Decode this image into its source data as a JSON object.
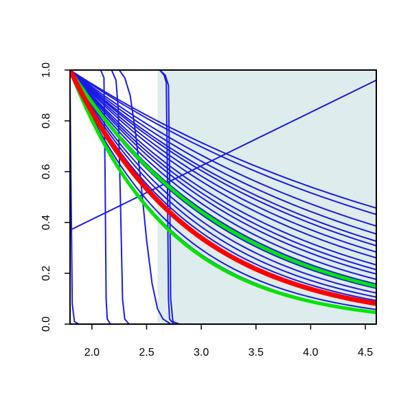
{
  "chart_data": {
    "type": "line",
    "title": "",
    "xlabel": "",
    "ylabel": "",
    "xlim": [
      1.8,
      4.6
    ],
    "ylim": [
      0.0,
      1.0
    ],
    "grid": false,
    "x_ticks": [
      2.0,
      2.5,
      3.0,
      3.5,
      4.0,
      4.5
    ],
    "x_tick_labels": [
      "2.0",
      "2.5",
      "3.0",
      "3.5",
      "4.0",
      "4.5"
    ],
    "y_ticks": [
      0.0,
      0.2,
      0.4,
      0.6,
      0.8,
      1.0
    ],
    "y_tick_labels": [
      "0.0",
      "0.2",
      "0.4",
      "0.6",
      "0.8",
      "1.0"
    ],
    "shaded_region": {
      "x_from": 2.6,
      "x_to": 4.6,
      "color": "#dfeced"
    },
    "colors": {
      "blue": "#1a1ae6",
      "red": "#ff0000",
      "green": "#00e600"
    },
    "series": [
      {
        "color": "blue",
        "width": 2,
        "points": [
          [
            1.8,
            0.37
          ],
          [
            4.6,
            0.96
          ]
        ]
      },
      {
        "color": "blue",
        "width": 2,
        "kind": "step",
        "points": [
          [
            1.8,
            1.0
          ],
          [
            1.8,
            0.93
          ],
          [
            1.81,
            0.5
          ],
          [
            1.82,
            0.08
          ],
          [
            1.84,
            0.01
          ],
          [
            1.88,
            0.0
          ],
          [
            4.6,
            0.0
          ]
        ]
      },
      {
        "color": "blue",
        "width": 2,
        "kind": "step",
        "points": [
          [
            1.8,
            1.0
          ],
          [
            2.08,
            1.0
          ],
          [
            2.11,
            0.97
          ],
          [
            2.12,
            0.6
          ],
          [
            2.13,
            0.1
          ],
          [
            2.14,
            0.02
          ],
          [
            2.17,
            0.0
          ],
          [
            4.6,
            0.0
          ]
        ]
      },
      {
        "color": "blue",
        "width": 2,
        "kind": "step",
        "points": [
          [
            1.8,
            1.0
          ],
          [
            2.18,
            1.0
          ],
          [
            2.22,
            0.96
          ],
          [
            2.24,
            0.85
          ],
          [
            2.26,
            0.5
          ],
          [
            2.28,
            0.1
          ],
          [
            2.3,
            0.02
          ],
          [
            2.34,
            0.0
          ],
          [
            4.6,
            0.0
          ]
        ]
      },
      {
        "color": "blue",
        "width": 2,
        "kind": "step",
        "points": [
          [
            1.8,
            1.0
          ],
          [
            2.25,
            1.0
          ],
          [
            2.3,
            0.97
          ],
          [
            2.35,
            0.9
          ],
          [
            2.4,
            0.75
          ],
          [
            2.45,
            0.55
          ],
          [
            2.5,
            0.33
          ],
          [
            2.55,
            0.16
          ],
          [
            2.6,
            0.06
          ],
          [
            2.65,
            0.02
          ],
          [
            2.72,
            0.0
          ],
          [
            4.6,
            0.0
          ]
        ]
      },
      {
        "color": "blue",
        "width": 2,
        "kind": "step",
        "points": [
          [
            1.8,
            1.0
          ],
          [
            2.62,
            1.0
          ],
          [
            2.66,
            0.98
          ],
          [
            2.68,
            0.95
          ],
          [
            2.69,
            0.6
          ],
          [
            2.7,
            0.1
          ],
          [
            2.71,
            0.02
          ],
          [
            2.75,
            0.0
          ],
          [
            4.6,
            0.0
          ]
        ]
      },
      {
        "color": "blue",
        "width": 2,
        "kind": "step",
        "points": [
          [
            1.8,
            1.0
          ],
          [
            2.62,
            1.0
          ],
          [
            2.67,
            0.98
          ],
          [
            2.7,
            0.94
          ],
          [
            2.71,
            0.6
          ],
          [
            2.72,
            0.1
          ],
          [
            2.74,
            0.01
          ],
          [
            2.8,
            0.0
          ],
          [
            4.6,
            0.0
          ]
        ]
      },
      {
        "color": "blue",
        "width": 2,
        "kind": "exp",
        "k": 0.28
      },
      {
        "color": "blue",
        "width": 2,
        "kind": "exp",
        "k": 0.3
      },
      {
        "color": "blue",
        "width": 2,
        "kind": "exp",
        "k": 0.34
      },
      {
        "color": "blue",
        "width": 2,
        "kind": "exp",
        "k": 0.37
      },
      {
        "color": "blue",
        "width": 2,
        "kind": "exp",
        "k": 0.4
      },
      {
        "color": "blue",
        "width": 2,
        "kind": "exp",
        "k": 0.42
      },
      {
        "color": "blue",
        "width": 2,
        "kind": "exp",
        "k": 0.45
      },
      {
        "color": "blue",
        "width": 2,
        "kind": "exp",
        "k": 0.48
      },
      {
        "color": "blue",
        "width": 2,
        "kind": "exp",
        "k": 0.52
      },
      {
        "color": "blue",
        "width": 2,
        "kind": "exp",
        "k": 0.55
      },
      {
        "color": "blue",
        "width": 2,
        "kind": "exp",
        "k": 0.58
      },
      {
        "color": "blue",
        "width": 2,
        "kind": "exp",
        "k": 0.62
      },
      {
        "color": "blue",
        "width": 2,
        "kind": "exp",
        "k": 0.66
      },
      {
        "color": "blue",
        "width": 2,
        "kind": "exp",
        "k": 0.7
      },
      {
        "color": "blue",
        "width": 2,
        "kind": "exp",
        "k": 0.75
      },
      {
        "color": "blue",
        "width": 2,
        "kind": "exp",
        "k": 0.8
      },
      {
        "color": "blue",
        "width": 2,
        "kind": "exp",
        "k": 0.85
      },
      {
        "color": "blue",
        "width": 2,
        "kind": "exp",
        "k": 1.02
      },
      {
        "color": "blue",
        "width": 2,
        "kind": "exp",
        "k": 1.08
      },
      {
        "color": "green",
        "width": 5,
        "kind": "exp",
        "k": 0.68
      },
      {
        "color": "green",
        "width": 5,
        "kind": "exp",
        "k": 1.1
      },
      {
        "color": "red",
        "width": 7,
        "kind": "exp",
        "k": 0.9
      }
    ]
  }
}
